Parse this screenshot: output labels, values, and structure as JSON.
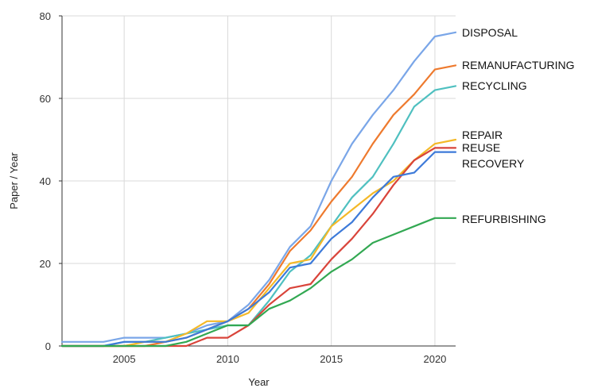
{
  "chart_data": {
    "type": "line",
    "title": "",
    "xlabel": "Year",
    "ylabel": "Paper / Year",
    "xlim": [
      2002,
      2021
    ],
    "ylim": [
      0,
      80
    ],
    "x_ticks": [
      2005,
      2010,
      2015,
      2020
    ],
    "y_ticks": [
      0,
      20,
      40,
      60,
      80
    ],
    "grid": true,
    "legend": "inline-right",
    "x": [
      2002,
      2003,
      2004,
      2005,
      2006,
      2007,
      2008,
      2009,
      2010,
      2011,
      2012,
      2013,
      2014,
      2015,
      2016,
      2017,
      2018,
      2019,
      2020,
      2021
    ],
    "series": [
      {
        "name": "DISPOSAL",
        "color": "#7aa6e8",
        "values": [
          1,
          1,
          1,
          2,
          2,
          2,
          3,
          5,
          6,
          10,
          16,
          24,
          29,
          40,
          49,
          56,
          62,
          69,
          75,
          76
        ]
      },
      {
        "name": "REMANUFACTURING",
        "color": "#ee7a2e",
        "values": [
          0,
          0,
          0,
          0,
          0,
          1,
          2,
          4,
          6,
          9,
          15,
          23,
          28,
          35,
          41,
          49,
          56,
          61,
          67,
          68
        ]
      },
      {
        "name": "RECYCLING",
        "color": "#4fc0c0",
        "values": [
          0,
          0,
          0,
          1,
          1,
          2,
          3,
          4,
          5,
          5,
          11,
          18,
          22,
          29,
          36,
          41,
          49,
          58,
          62,
          63
        ]
      },
      {
        "name": "REPAIR",
        "color": "#f4b928",
        "values": [
          0,
          0,
          0,
          0,
          1,
          1,
          3,
          6,
          6,
          8,
          14,
          20,
          21,
          29,
          33,
          37,
          40,
          45,
          49,
          50
        ]
      },
      {
        "name": "REUSE",
        "color": "#d9443a",
        "values": [
          0,
          0,
          0,
          0,
          0,
          0,
          0,
          2,
          2,
          5,
          10,
          14,
          15,
          21,
          26,
          32,
          39,
          45,
          48,
          48
        ]
      },
      {
        "name": "RECOVERY",
        "color": "#3d7ad9",
        "values": [
          0,
          0,
          0,
          1,
          1,
          1,
          2,
          4,
          6,
          9,
          13,
          19,
          20,
          26,
          30,
          36,
          41,
          42,
          47,
          47
        ]
      },
      {
        "name": "REFURBISHING",
        "color": "#32a852",
        "values": [
          0,
          0,
          0,
          0,
          0,
          0,
          1,
          3,
          5,
          5,
          9,
          11,
          14,
          18,
          21,
          25,
          27,
          29,
          31,
          31
        ]
      }
    ]
  }
}
